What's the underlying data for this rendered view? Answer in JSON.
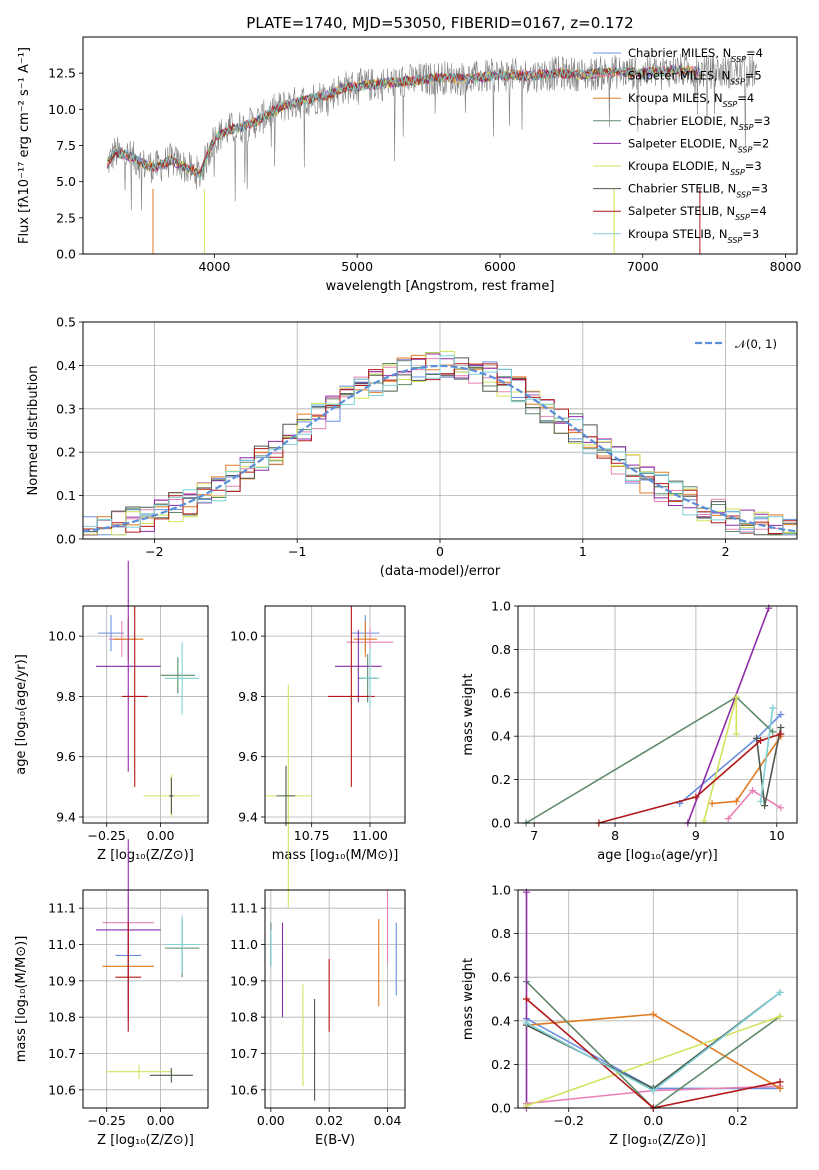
{
  "chart_data": [
    {
      "type": "line",
      "title": "PLATE=1740, MJD=53050, FIBERID=0167, z=0.172",
      "xlabel": "wavelength [Angstrom, rest frame]",
      "ylabel": "Flux [fλ10⁻¹⁷ erg cm⁻² s⁻¹ A⁻¹]",
      "xlim": [
        3080,
        8080
      ],
      "ylim": [
        0,
        15
      ],
      "xticks": [
        "4000",
        "5000",
        "6000",
        "7000",
        "8000"
      ],
      "yticks": [
        "0.0",
        "2.5",
        "5.0",
        "7.5",
        "10.0",
        "12.5"
      ],
      "spectrum_sketch": {
        "x": [
          3250,
          3300,
          3400,
          3500,
          3600,
          3700,
          3800,
          3900,
          4000,
          4100,
          4200,
          4300,
          4400,
          4500,
          4600,
          4700,
          4800,
          4900,
          5000,
          5200,
          5400,
          5600,
          5800,
          6000,
          6200,
          6400,
          6600,
          6800,
          7000,
          7200,
          7400
        ],
        "y": [
          6.2,
          7.0,
          6.8,
          6.2,
          6.0,
          6.5,
          6.0,
          5.5,
          8.0,
          8.6,
          8.8,
          9.2,
          9.8,
          10.3,
          10.5,
          10.8,
          11.0,
          11.5,
          11.6,
          11.8,
          12.0,
          12.2,
          12.1,
          12.4,
          12.3,
          12.5,
          12.4,
          12.6,
          12.5,
          12.7,
          12.6
        ]
      },
      "legend": {
        "placement": "top-right",
        "entries": [
          {
            "label": "Chabrier MILES, N_SSP=4",
            "text": "Chabrier MILES, N",
            "sub": "SSP",
            "tail": "=4",
            "color": "#6a8fe0"
          },
          {
            "label": "Salpeter MILES, N_SSP=5",
            "text": "Salpeter MILES, N",
            "sub": "SSP",
            "tail": "=5",
            "color": "#e882b4"
          },
          {
            "label": "Kroupa MILES, N_SSP=4",
            "text": "Kroupa MILES, N",
            "sub": "SSP",
            "tail": "=4",
            "color": "#e07b22"
          },
          {
            "label": "Chabrier ELODIE, N_SSP=3",
            "text": "Chabrier ELODIE, N",
            "sub": "SSP",
            "tail": "=3",
            "color": "#5e8a6a"
          },
          {
            "label": "Salpeter ELODIE, N_SSP=2",
            "text": "Salpeter ELODIE, N",
            "sub": "SSP",
            "tail": "=2",
            "color": "#8e2ca8"
          },
          {
            "label": "Kroupa ELODIE, N_SSP=3",
            "text": "Kroupa ELODIE, N",
            "sub": "SSP",
            "tail": "=3",
            "color": "#d4e35c"
          },
          {
            "label": "Chabrier STELIB, N_SSP=3",
            "text": "Chabrier STELIB, N",
            "sub": "SSP",
            "tail": "=3",
            "color": "#4d5a4d"
          },
          {
            "label": "Salpeter STELIB, N_SSP=4",
            "text": "Salpeter STELIB, N",
            "sub": "SSP",
            "tail": "=4",
            "color": "#b21818"
          },
          {
            "label": "Kroupa STELIB, N_SSP=3",
            "text": "Kroupa STELIB, N",
            "sub": "SSP",
            "tail": "=3",
            "color": "#7fd0d6"
          }
        ]
      },
      "grid": false
    },
    {
      "type": "step",
      "xlabel": "(data-model)/error",
      "ylabel": "Normed distribution",
      "xlim": [
        -2.5,
        2.5
      ],
      "ylim": [
        0,
        0.5
      ],
      "xticks": [
        "−2",
        "−1",
        "0",
        "1",
        "2"
      ],
      "yticks": [
        "0.0",
        "0.1",
        "0.2",
        "0.3",
        "0.4",
        "0.5"
      ],
      "legend": {
        "placement": "top-right",
        "entries": [
          {
            "label": "𝒩(0, 1)",
            "color": "#5b8fd8",
            "style": "dashed"
          }
        ]
      },
      "grid": true
    },
    {
      "type": "errorbar",
      "xlabel": "Z [log₁₀(Z/Z⊙)]",
      "ylabel": "age  [log₁₀(age/yr)]",
      "xlim": [
        -0.36,
        0.22
      ],
      "ylim": [
        9.38,
        10.1
      ],
      "xticks": [
        "−0.25",
        "0.00"
      ],
      "yticks": [
        "9.4",
        "9.6",
        "9.8",
        "10.0"
      ],
      "grid": true
    },
    {
      "type": "errorbar",
      "xlabel": "mass [log₁₀(M/M⊙)]",
      "xlim": [
        10.55,
        11.15
      ],
      "ylim": [
        9.38,
        10.1
      ],
      "xticks": [
        "10.75",
        "11.00"
      ],
      "yticks": [
        "9.4",
        "9.6",
        "9.8",
        "10.0"
      ],
      "grid": true
    },
    {
      "type": "line",
      "xlabel": "age  [log₁₀(age/yr)]",
      "ylabel": "mass weight",
      "xlim": [
        6.8,
        10.25
      ],
      "ylim": [
        0,
        1.0
      ],
      "xticks": [
        "7",
        "8",
        "9",
        "10"
      ],
      "yticks": [
        "0.0",
        "0.2",
        "0.4",
        "0.6",
        "0.8",
        "1.0"
      ],
      "grid": true
    },
    {
      "type": "errorbar",
      "xlabel": "Z [log₁₀(Z/Z⊙)]",
      "ylabel": "mass [log₁₀(M/M⊙)]",
      "xlim": [
        -0.36,
        0.22
      ],
      "ylim": [
        10.55,
        11.15
      ],
      "xticks": [
        "−0.25",
        "0.00"
      ],
      "yticks": [
        "10.6",
        "10.7",
        "10.8",
        "10.9",
        "11.0",
        "11.1"
      ],
      "grid": true
    },
    {
      "type": "errorbar",
      "xlabel": "E(B-V)",
      "xlim": [
        -0.002,
        0.046
      ],
      "ylim": [
        10.55,
        11.15
      ],
      "xticks": [
        "0.00",
        "0.02",
        "0.04"
      ],
      "yticks": [
        "10.6",
        "10.7",
        "10.8",
        "10.9",
        "11.0",
        "11.1"
      ],
      "grid": true
    },
    {
      "type": "line",
      "xlabel": "Z [log₁₀(Z/Z⊙)]",
      "ylabel": "mass weight",
      "xlim": [
        -0.32,
        0.34
      ],
      "ylim": [
        0,
        1.0
      ],
      "xticks": [
        "−0.2",
        "0.0",
        "0.2"
      ],
      "yticks": [
        "0.0",
        "0.2",
        "0.4",
        "0.6",
        "0.8",
        "1.0"
      ],
      "grid": true
    }
  ]
}
